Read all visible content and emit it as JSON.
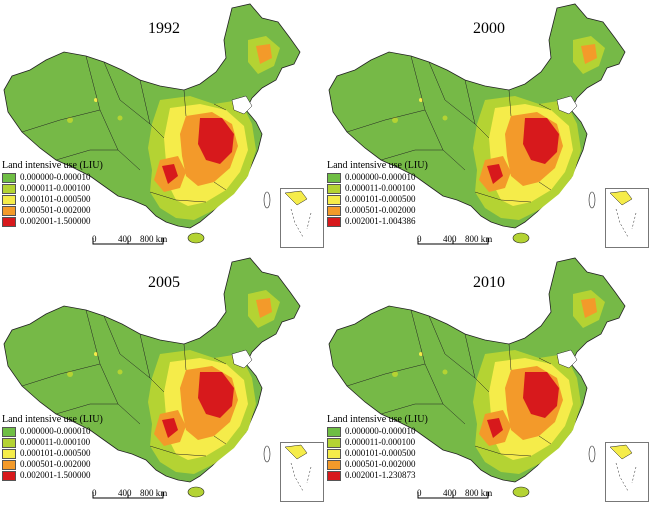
{
  "legend_title": "Land intensive use (LIU)",
  "colors": {
    "class1": "#6fbe44",
    "class2": "#b4d333",
    "class3": "#f5ec4a",
    "class4": "#f39a2a",
    "class5": "#d7191c",
    "background_land": "#76b947",
    "boundary": "#222222"
  },
  "scale": {
    "tick0": "0",
    "tick1": "400",
    "tick2": "800 km"
  },
  "panels": [
    {
      "year": "1992",
      "classes": [
        "0.000000-0.000010",
        "0.000011-0.000100",
        "0.000101-0.000500",
        "0.000501-0.002000",
        "0.002001-1.500000"
      ]
    },
    {
      "year": "2000",
      "classes": [
        "0.000000-0.000010",
        "0.000011-0.000100",
        "0.000101-0.000500",
        "0.000501-0.002000",
        "0.002001-1.004386"
      ]
    },
    {
      "year": "2005",
      "classes": [
        "0.000000-0.000010",
        "0.000011-0.000100",
        "0.000101-0.000500",
        "0.000501-0.002000",
        "0.002001-1.500000"
      ]
    },
    {
      "year": "2010",
      "classes": [
        "0.000000-0.000010",
        "0.000011-0.000100",
        "0.000101-0.000500",
        "0.000501-0.002000",
        "0.002001-1.230873"
      ]
    }
  ]
}
